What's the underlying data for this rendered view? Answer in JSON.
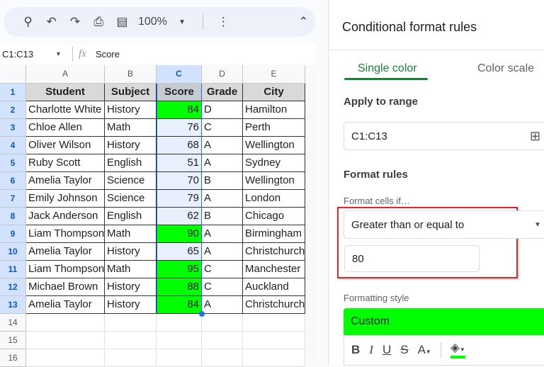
{
  "toolbar": {
    "zoom": "100%",
    "icons": [
      "search-icon",
      "undo-icon",
      "redo-icon",
      "print-icon",
      "paint-format-icon",
      "more-icon",
      "collapse-icon"
    ]
  },
  "formula": {
    "range": "C1:C13",
    "fx": "fx",
    "value": "Score"
  },
  "columns": [
    "A",
    "B",
    "C",
    "D",
    "E"
  ],
  "rows": [
    [
      "Student",
      "Subject",
      "Score",
      "Grade",
      "City"
    ],
    [
      "Charlotte White",
      "History",
      "84",
      "D",
      "Hamilton"
    ],
    [
      "Chloe Allen",
      "Math",
      "76",
      "C",
      "Perth"
    ],
    [
      "Oliver Wilson",
      "History",
      "68",
      "A",
      "Wellington"
    ],
    [
      "Ruby Scott",
      "English",
      "51",
      "A",
      "Sydney"
    ],
    [
      "Amelia Taylor",
      "Science",
      "70",
      "B",
      "Wellington"
    ],
    [
      "Emily Johnson",
      "Science",
      "79",
      "A",
      "London"
    ],
    [
      "Jack Anderson",
      "English",
      "62",
      "B",
      "Chicago"
    ],
    [
      "Liam Thompson",
      "Math",
      "90",
      "A",
      "Birmingham"
    ],
    [
      "Amelia Taylor",
      "History",
      "65",
      "A",
      "Christchurch"
    ],
    [
      "Liam Thompson",
      "Math",
      "95",
      "C",
      "Manchester"
    ],
    [
      "Michael Brown",
      "History",
      "88",
      "C",
      "Auckland"
    ],
    [
      "Amelia Taylor",
      "History",
      "84",
      "A",
      "Christchurch"
    ]
  ],
  "row_numbers": [
    "1",
    "2",
    "3",
    "4",
    "5",
    "6",
    "7",
    "8",
    "9",
    "10",
    "11",
    "12",
    "13",
    "14",
    "15",
    "16"
  ],
  "colors": {
    "highlight": "#00ff00",
    "selection": "#e8f0fe",
    "accent": "#188038"
  },
  "panel": {
    "title": "Conditional format rules",
    "tabs": [
      "Single color",
      "Color scale"
    ],
    "apply_label": "Apply to range",
    "range": "C1:C13",
    "rules_label": "Format rules",
    "cells_if_label": "Format cells if…",
    "condition": "Greater than or equal to",
    "value": "80",
    "style_label": "Formatting style",
    "style_preview": "Custom",
    "style_tools": [
      "B",
      "I",
      "U",
      "S",
      "A"
    ]
  }
}
